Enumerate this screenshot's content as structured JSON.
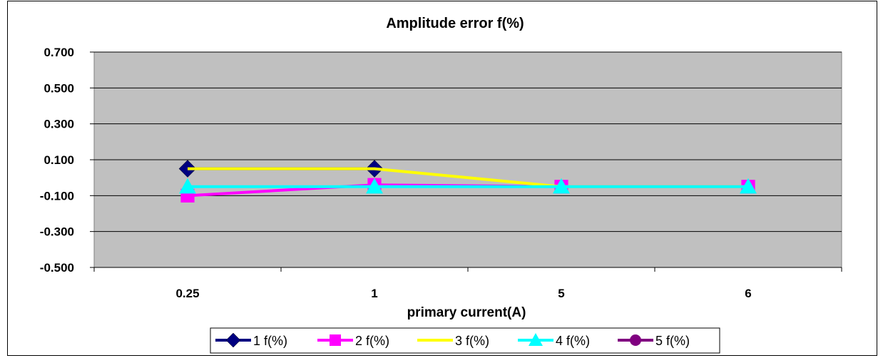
{
  "chart_data": {
    "type": "line",
    "title": "Amplitude error  f(%)",
    "xlabel": "primary current(A)",
    "ylabel": "",
    "categories": [
      "0.25",
      "1",
      "5",
      "6"
    ],
    "ylim": [
      -0.5,
      0.7
    ],
    "yticks": [
      0.7,
      0.5,
      0.3,
      0.1,
      -0.1,
      -0.3,
      -0.5
    ],
    "ytick_labels": [
      "0.700",
      "0.500",
      "0.300",
      "0.100",
      "-0.100",
      "-0.300",
      "-0.500"
    ],
    "grid": true,
    "legend_position": "bottom",
    "plot_background": "#c0c0c0",
    "series": [
      {
        "name": "1 f(%)",
        "color": "#000080",
        "marker": "diamond",
        "values": [
          0.05,
          0.05,
          null,
          null
        ]
      },
      {
        "name": "2 f(%)",
        "color": "#ff00ff",
        "marker": "square",
        "values": [
          -0.1,
          -0.04,
          -0.05,
          -0.05
        ]
      },
      {
        "name": "3 f(%)",
        "color": "#ffff00",
        "marker": "none",
        "values": [
          0.05,
          0.05,
          -0.05,
          -0.05
        ]
      },
      {
        "name": "4 f(%)",
        "color": "#00ffff",
        "marker": "triangle",
        "values": [
          -0.05,
          -0.05,
          -0.05,
          -0.05
        ]
      },
      {
        "name": "5 f(%)",
        "color": "#800080",
        "marker": "circle",
        "values": [
          null,
          null,
          null,
          null
        ]
      }
    ]
  }
}
